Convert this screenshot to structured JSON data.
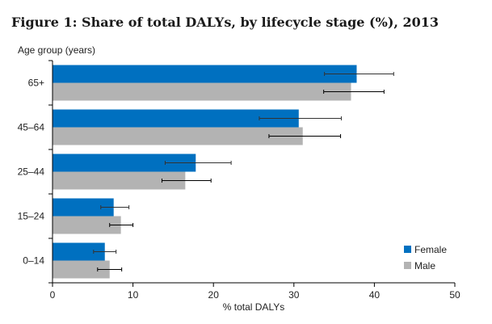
{
  "chart_data": {
    "type": "bar",
    "orientation": "horizontal",
    "title": "Figure 1: Share of total DALYs, by lifecycle stage (%), 2013",
    "ylabel": "Age group (years)",
    "xlabel": "% total DALYs",
    "categories": [
      "65+",
      "45–64",
      "25–44",
      "15–24",
      "0–14"
    ],
    "xlim": [
      0,
      50
    ],
    "xticks": [
      "0",
      "10",
      "20",
      "30",
      "40",
      "50"
    ],
    "series": [
      {
        "name": "Female",
        "color": "#0070c0",
        "values": [
          37.8,
          30.6,
          17.8,
          7.6,
          6.5
        ],
        "error_low": [
          33.8,
          25.7,
          14.0,
          6.0,
          5.1
        ],
        "error_high": [
          42.4,
          35.9,
          22.2,
          9.5,
          7.9
        ]
      },
      {
        "name": "Male",
        "color": "#b3b3b3",
        "values": [
          37.1,
          31.1,
          16.5,
          8.5,
          7.1
        ],
        "error_low": [
          33.7,
          26.9,
          13.6,
          7.1,
          5.6
        ],
        "error_high": [
          41.2,
          35.8,
          19.7,
          10.0,
          8.6
        ]
      }
    ],
    "legend_position": "bottom-right",
    "grid": false
  }
}
